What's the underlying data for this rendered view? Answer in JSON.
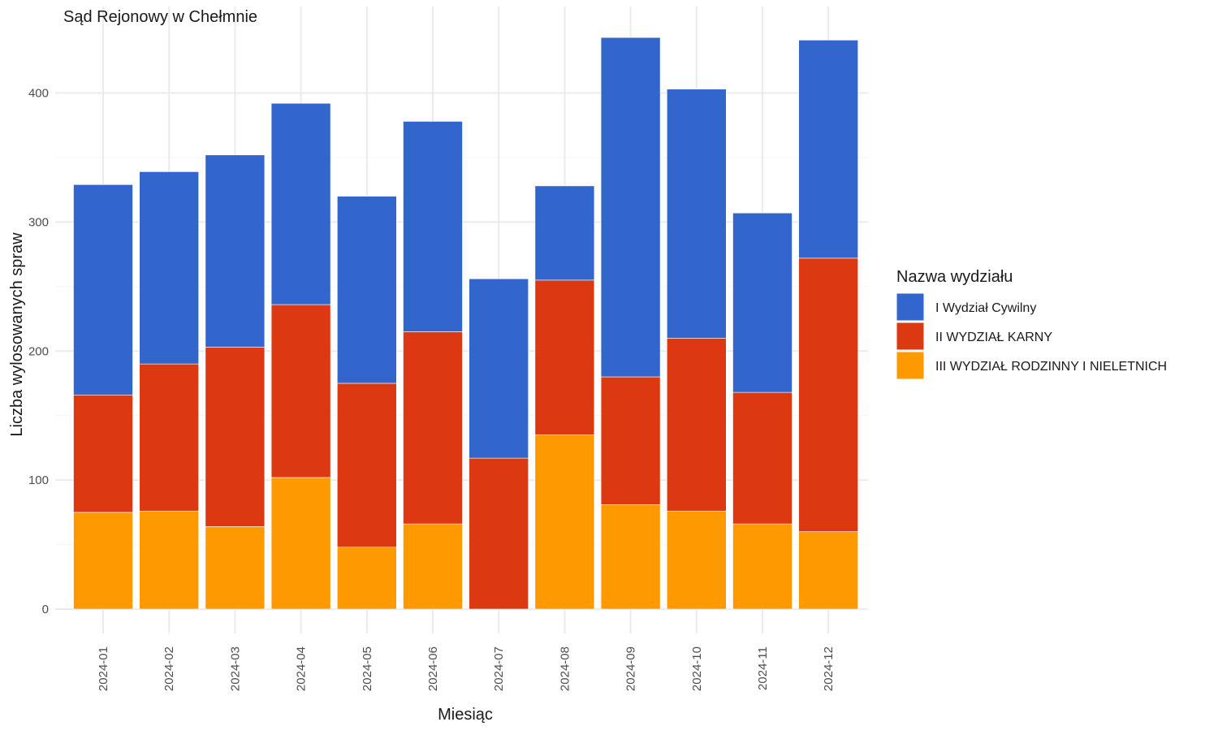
{
  "chart_data": {
    "type": "bar",
    "stacked": true,
    "title": "Sąd Rejonowy w Chełmnie",
    "xlabel": "Miesiąc",
    "ylabel": "Liczba wylosowanych spraw",
    "ylim": [
      0,
      445
    ],
    "yticks": [
      0,
      100,
      200,
      300,
      400
    ],
    "grid": true,
    "legend": {
      "title": "Nazwa wydziału",
      "position": "right"
    },
    "categories": [
      "2024-01",
      "2024-02",
      "2024-03",
      "2024-04",
      "2024-05",
      "2024-06",
      "2024-07",
      "2024-08",
      "2024-09",
      "2024-10",
      "2024-11",
      "2024-12"
    ],
    "series": [
      {
        "name": "III WYDZIAŁ RODZINNY I NIELETNICH",
        "color": "#FF9900",
        "values": [
          75,
          76,
          64,
          102,
          48,
          66,
          0,
          135,
          81,
          76,
          66,
          60
        ]
      },
      {
        "name": "II WYDZIAŁ KARNY",
        "color": "#DC3912",
        "values": [
          91,
          114,
          139,
          134,
          127,
          149,
          117,
          120,
          99,
          134,
          102,
          212
        ]
      },
      {
        "name": "I Wydział Cywilny",
        "color": "#3366CC",
        "values": [
          163,
          149,
          149,
          156,
          145,
          163,
          139,
          73,
          263,
          193,
          139,
          169
        ]
      }
    ],
    "legend_order": [
      "I Wydział Cywilny",
      "II WYDZIAŁ KARNY",
      "III WYDZIAŁ RODZINNY I NIELETNICH"
    ]
  }
}
